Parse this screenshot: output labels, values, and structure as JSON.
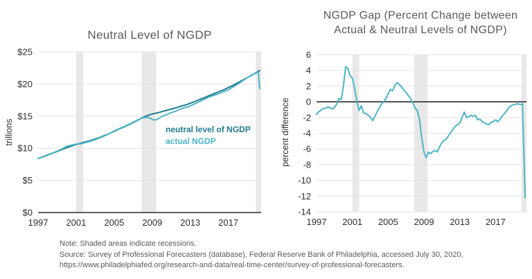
{
  "colors": {
    "background": "#ffffff",
    "neutral_line": "#1e7a8c",
    "actual_line": "#4cb4c4",
    "recession_band": "#e8e8e8",
    "gridline": "#e4e4e4",
    "axis_line": "#2b2a29",
    "title_text": "#58595b",
    "tick_text": "#2d2d2d",
    "note_text": "#58595b"
  },
  "notes": {
    "note": "Note: Shaded areas indicate recessions.",
    "source": "Source: Survey of Professional Forecasters (database), Federal Reserve Bank of Philadelphia, accessed July 30, 2020, https://www.philadelphiafed.org/research-and-data/real-time-center/survey-of-professional-forecasters."
  },
  "chart_data": [
    {
      "type": "line",
      "title": "Neutral Level of NGDP",
      "title_lines": [
        "Neutral Level of NGDP"
      ],
      "xlabel": "",
      "ylabel": "trillions",
      "xlim": [
        1997,
        2020.45
      ],
      "ylim": [
        0,
        25
      ],
      "grid": "horizontal",
      "baseline_axis": true,
      "zero_line": false,
      "legend_position": "inside-right-middle",
      "xticks": {
        "values": [
          1997,
          2001,
          2005,
          2009,
          2013,
          2017
        ],
        "labels": [
          "1997",
          "2001",
          "2005",
          "2009",
          "2013",
          "2017"
        ]
      },
      "yticks": {
        "values": [
          0,
          5,
          10,
          15,
          20,
          25
        ],
        "labels": [
          "$0",
          "$5",
          "$10",
          "$15",
          "$20",
          "$25"
        ]
      },
      "recession_bands": [
        [
          2001,
          2001.75
        ],
        [
          2007.9,
          2009.4
        ],
        [
          2019.9,
          2020.45
        ]
      ],
      "series": [
        {
          "name": "neutral level of NGDP",
          "color": "#1e7a8c",
          "points": [
            [
              1997,
              8.4
            ],
            [
              1997.5,
              8.65
            ],
            [
              1998,
              8.95
            ],
            [
              1998.5,
              9.2
            ],
            [
              1999,
              9.5
            ],
            [
              1999.5,
              9.8
            ],
            [
              2000,
              10.1
            ],
            [
              2000.5,
              10.35
            ],
            [
              2001,
              10.6
            ],
            [
              2001.5,
              10.8
            ],
            [
              2002,
              11.0
            ],
            [
              2002.5,
              11.2
            ],
            [
              2003,
              11.45
            ],
            [
              2003.5,
              11.7
            ],
            [
              2004,
              12.0
            ],
            [
              2004.5,
              12.3
            ],
            [
              2005,
              12.65
            ],
            [
              2005.5,
              13.0
            ],
            [
              2006,
              13.3
            ],
            [
              2006.5,
              13.65
            ],
            [
              2007,
              14.0
            ],
            [
              2007.5,
              14.4
            ],
            [
              2008,
              14.8
            ],
            [
              2008.5,
              15.1
            ],
            [
              2009,
              15.35
            ],
            [
              2009.5,
              15.5
            ],
            [
              2010,
              15.7
            ],
            [
              2010.5,
              15.9
            ],
            [
              2011,
              16.1
            ],
            [
              2011.5,
              16.3
            ],
            [
              2012,
              16.55
            ],
            [
              2012.5,
              16.75
            ],
            [
              2013,
              17.0
            ],
            [
              2013.5,
              17.3
            ],
            [
              2014,
              17.6
            ],
            [
              2014.5,
              17.9
            ],
            [
              2015,
              18.2
            ],
            [
              2015.5,
              18.5
            ],
            [
              2016,
              18.8
            ],
            [
              2016.5,
              19.1
            ],
            [
              2017,
              19.45
            ],
            [
              2017.5,
              19.8
            ],
            [
              2018,
              20.2
            ],
            [
              2018.5,
              20.6
            ],
            [
              2019,
              21.0
            ],
            [
              2019.5,
              21.4
            ],
            [
              2020,
              21.85
            ],
            [
              2020.3,
              22.1
            ]
          ]
        },
        {
          "name": "actual NGDP",
          "color": "#4cb4c4",
          "points": [
            [
              1997,
              8.4
            ],
            [
              1997.5,
              8.7
            ],
            [
              1998,
              9.0
            ],
            [
              1998.5,
              9.25
            ],
            [
              1999,
              9.55
            ],
            [
              1999.5,
              9.9
            ],
            [
              2000,
              10.3
            ],
            [
              2000.5,
              10.5
            ],
            [
              2001,
              10.65
            ],
            [
              2001.5,
              10.7
            ],
            [
              2002,
              10.9
            ],
            [
              2002.5,
              11.1
            ],
            [
              2003,
              11.35
            ],
            [
              2003.5,
              11.65
            ],
            [
              2004,
              11.95
            ],
            [
              2004.5,
              12.3
            ],
            [
              2005,
              12.7
            ],
            [
              2005.5,
              13.05
            ],
            [
              2006,
              13.35
            ],
            [
              2006.5,
              13.7
            ],
            [
              2007,
              14.05
            ],
            [
              2007.5,
              14.45
            ],
            [
              2008,
              14.75
            ],
            [
              2008.25,
              14.8
            ],
            [
              2008.5,
              14.85
            ],
            [
              2008.75,
              14.7
            ],
            [
              2009,
              14.5
            ],
            [
              2009.25,
              14.4
            ],
            [
              2009.5,
              14.5
            ],
            [
              2010,
              14.95
            ],
            [
              2010.5,
              15.25
            ],
            [
              2011,
              15.55
            ],
            [
              2011.5,
              15.8
            ],
            [
              2012,
              16.15
            ],
            [
              2012.5,
              16.35
            ],
            [
              2013,
              16.6
            ],
            [
              2013.5,
              16.95
            ],
            [
              2014,
              17.3
            ],
            [
              2014.5,
              17.65
            ],
            [
              2015,
              18.0
            ],
            [
              2015.5,
              18.25
            ],
            [
              2016,
              18.5
            ],
            [
              2016.5,
              18.8
            ],
            [
              2017,
              19.1
            ],
            [
              2017.5,
              19.55
            ],
            [
              2018,
              20.0
            ],
            [
              2018.5,
              20.5
            ],
            [
              2019,
              21.0
            ],
            [
              2019.5,
              21.45
            ],
            [
              2019.75,
              21.6
            ],
            [
              2020,
              21.8
            ],
            [
              2020.15,
              21.85
            ],
            [
              2020.3,
              19.3
            ]
          ]
        }
      ]
    },
    {
      "type": "line",
      "title": "NGDP Gap (Percent Change between Actual & Neutral Levels of NGDP)",
      "title_lines": [
        "NGDP Gap (Percent Change between",
        "Actual & Neutral Levels of NGDP)"
      ],
      "xlabel": "",
      "ylabel": "percent difference",
      "xlim": [
        1997,
        2020.45
      ],
      "ylim": [
        -14,
        6
      ],
      "grid": "horizontal",
      "baseline_axis": false,
      "zero_line": true,
      "legend_position": "none",
      "xticks": {
        "values": [
          1997,
          2001,
          2005,
          2009,
          2013,
          2017
        ],
        "labels": [
          "1997",
          "2001",
          "2005",
          "2009",
          "2013",
          "2017"
        ]
      },
      "yticks": {
        "values": [
          6,
          4,
          2,
          0,
          -2,
          -4,
          -6,
          -8,
          -10,
          -12,
          -14
        ],
        "labels": [
          "6",
          "4",
          "2",
          "0",
          "-2",
          "-4",
          "-6",
          "-8",
          "-10",
          "-12",
          "-14"
        ]
      },
      "recession_bands": [
        [
          2001,
          2001.75
        ],
        [
          2007.9,
          2009.4
        ],
        [
          2019.9,
          2020.45
        ]
      ],
      "series": [
        {
          "name": "NGDP gap",
          "color": "#4cb4c4",
          "points": [
            [
              1997,
              -1.6
            ],
            [
              1997.25,
              -1.25
            ],
            [
              1997.5,
              -1.05
            ],
            [
              1997.75,
              -0.85
            ],
            [
              1998,
              -0.8
            ],
            [
              1998.25,
              -0.65
            ],
            [
              1998.5,
              -0.75
            ],
            [
              1998.75,
              -0.9
            ],
            [
              1999,
              -0.7
            ],
            [
              1999.25,
              -0.3
            ],
            [
              1999.5,
              0.4
            ],
            [
              1999.75,
              0.3
            ],
            [
              2000,
              2.0
            ],
            [
              2000.25,
              4.5
            ],
            [
              2000.5,
              4.2
            ],
            [
              2000.75,
              3.3
            ],
            [
              2001,
              3.0
            ],
            [
              2001.25,
              1.7
            ],
            [
              2001.5,
              0.2
            ],
            [
              2001.75,
              -1.1
            ],
            [
              2002,
              -0.5
            ],
            [
              2002.25,
              -1.4
            ],
            [
              2002.5,
              -1.5
            ],
            [
              2002.75,
              -1.7
            ],
            [
              2003,
              -1.9
            ],
            [
              2003.25,
              -2.4
            ],
            [
              2003.5,
              -1.9
            ],
            [
              2003.75,
              -1.3
            ],
            [
              2004,
              -0.8
            ],
            [
              2004.25,
              -0.3
            ],
            [
              2004.5,
              0.0
            ],
            [
              2004.75,
              0.4
            ],
            [
              2005,
              1.0
            ],
            [
              2005.25,
              1.6
            ],
            [
              2005.5,
              1.4
            ],
            [
              2005.75,
              2.1
            ],
            [
              2006,
              2.45
            ],
            [
              2006.25,
              2.2
            ],
            [
              2006.5,
              1.9
            ],
            [
              2006.75,
              1.5
            ],
            [
              2007,
              1.2
            ],
            [
              2007.25,
              0.8
            ],
            [
              2007.5,
              0.4
            ],
            [
              2007.75,
              -0.1
            ],
            [
              2008,
              -0.8
            ],
            [
              2008.25,
              -1.1
            ],
            [
              2008.5,
              -2.2
            ],
            [
              2008.75,
              -4.6
            ],
            [
              2009,
              -6.4
            ],
            [
              2009.25,
              -7.1
            ],
            [
              2009.5,
              -6.4
            ],
            [
              2009.75,
              -6.6
            ],
            [
              2010,
              -6.3
            ],
            [
              2010.25,
              -6.2
            ],
            [
              2010.5,
              -6.35
            ],
            [
              2010.75,
              -5.7
            ],
            [
              2011,
              -5.2
            ],
            [
              2011.25,
              -4.9
            ],
            [
              2011.5,
              -4.7
            ],
            [
              2011.75,
              -4.3
            ],
            [
              2012,
              -3.9
            ],
            [
              2012.25,
              -3.5
            ],
            [
              2012.5,
              -3.1
            ],
            [
              2012.75,
              -2.9
            ],
            [
              2013,
              -2.7
            ],
            [
              2013.25,
              -2.0
            ],
            [
              2013.5,
              -1.3
            ],
            [
              2013.75,
              -2.0
            ],
            [
              2014,
              -1.9
            ],
            [
              2014.25,
              -1.7
            ],
            [
              2014.5,
              -1.85
            ],
            [
              2014.75,
              -1.7
            ],
            [
              2015,
              -2.3
            ],
            [
              2015.25,
              -2.2
            ],
            [
              2015.5,
              -2.5
            ],
            [
              2015.75,
              -2.7
            ],
            [
              2016,
              -2.85
            ],
            [
              2016.25,
              -2.9
            ],
            [
              2016.5,
              -2.6
            ],
            [
              2016.75,
              -2.5
            ],
            [
              2017,
              -2.3
            ],
            [
              2017.25,
              -2.5
            ],
            [
              2017.5,
              -2.2
            ],
            [
              2017.75,
              -1.8
            ],
            [
              2018,
              -1.5
            ],
            [
              2018.25,
              -1.1
            ],
            [
              2018.5,
              -0.7
            ],
            [
              2018.75,
              -0.5
            ],
            [
              2019,
              -0.35
            ],
            [
              2019.25,
              -0.3
            ],
            [
              2019.5,
              -0.25
            ],
            [
              2019.75,
              -0.35
            ],
            [
              2020,
              -0.25
            ],
            [
              2020.3,
              -12.2
            ]
          ]
        }
      ]
    }
  ]
}
